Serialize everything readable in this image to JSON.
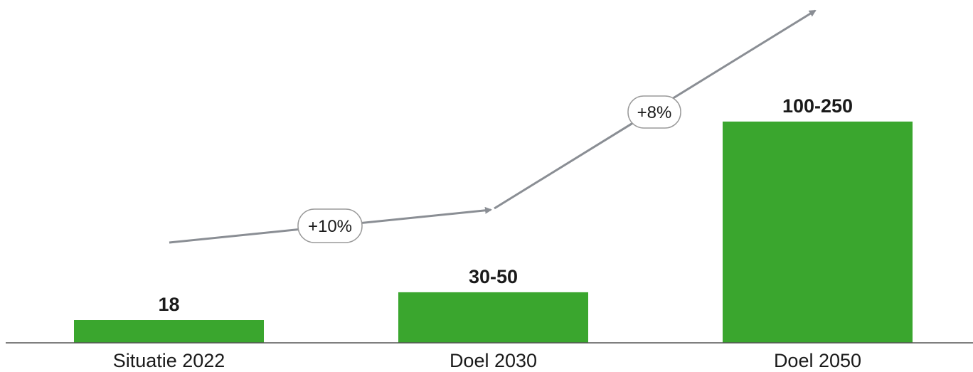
{
  "chart_data": {
    "type": "bar",
    "categories": [
      "Situatie 2022",
      "Doel 2030",
      "Doel 2050"
    ],
    "values": [
      18,
      40,
      175
    ],
    "value_labels": [
      "18",
      "30-50",
      "100-250"
    ],
    "ranges": [
      null,
      [
        30,
        50
      ],
      [
        100,
        250
      ]
    ],
    "ylim": [
      0,
      225
    ],
    "grid": false,
    "legend": "none",
    "colors": {
      "bar": "#3aa62e",
      "axis": "#555555",
      "arrow": "#8a8e94"
    },
    "growth_annotations": [
      {
        "from": "Situatie 2022",
        "to": "Doel 2030",
        "label": "+10%"
      },
      {
        "from": "Doel 2030",
        "to": "Doel 2050",
        "label": "+8%"
      }
    ]
  }
}
